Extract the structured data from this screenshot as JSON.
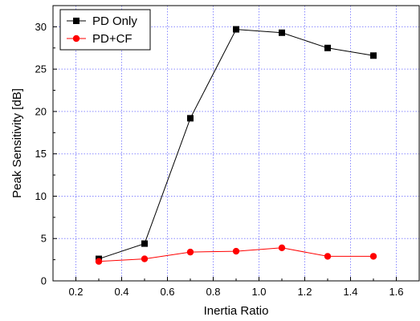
{
  "chart_data": {
    "type": "line",
    "title": "",
    "xlabel": "Inertia Ratio",
    "ylabel": "Peak Sensitivity [dB]",
    "xlim": [
      0.1,
      1.7
    ],
    "ylim": [
      0,
      32.5
    ],
    "xticks": [
      0.2,
      0.4,
      0.6,
      0.8,
      1.0,
      1.2,
      1.4,
      1.6
    ],
    "xtick_labels": [
      "0.2",
      "0.4",
      "0.6",
      "0.8",
      "1.0",
      "1.2",
      "1.4",
      "1.6"
    ],
    "yticks": [
      0,
      5,
      10,
      15,
      20,
      25,
      30
    ],
    "ytick_labels": [
      "0",
      "5",
      "10",
      "15",
      "20",
      "25",
      "30"
    ],
    "grid": true,
    "legend_position": "top-left",
    "x": [
      0.3,
      0.5,
      0.7,
      0.9,
      1.1,
      1.3,
      1.5
    ],
    "series": [
      {
        "name": "PD Only",
        "values": [
          2.6,
          4.4,
          19.2,
          29.7,
          29.3,
          27.5,
          26.6
        ],
        "color": "#000000",
        "marker": "square"
      },
      {
        "name": "PD+CF",
        "values": [
          2.3,
          2.6,
          3.4,
          3.5,
          3.9,
          2.9,
          2.9
        ],
        "color": "#ff0000",
        "marker": "circle"
      }
    ]
  }
}
